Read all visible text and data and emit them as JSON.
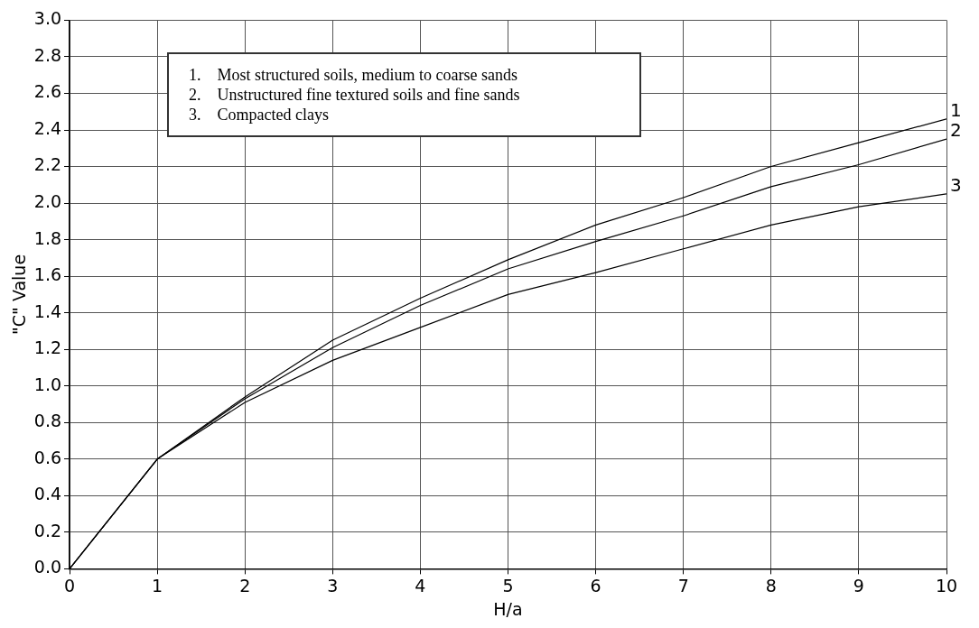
{
  "chart_data": {
    "type": "line",
    "xlabel": "H/a",
    "ylabel": "\"C\" Value",
    "x": [
      0,
      1,
      2,
      3,
      4,
      5,
      6,
      7,
      8,
      9,
      10
    ],
    "series": [
      {
        "name": "1",
        "color": "#000000",
        "values": [
          0,
          0.6,
          0.94,
          1.25,
          1.48,
          1.69,
          1.88,
          2.03,
          2.2,
          2.33,
          2.46
        ]
      },
      {
        "name": "2",
        "color": "#000000",
        "values": [
          0,
          0.6,
          0.93,
          1.21,
          1.44,
          1.64,
          1.79,
          1.93,
          2.09,
          2.21,
          2.35
        ]
      },
      {
        "name": "3",
        "color": "#000000",
        "values": [
          0,
          0.6,
          0.91,
          1.14,
          1.32,
          1.5,
          1.62,
          1.75,
          1.88,
          1.98,
          2.05
        ]
      }
    ],
    "xlim": [
      0,
      10
    ],
    "xticks": [
      0,
      1,
      2,
      3,
      4,
      5,
      6,
      7,
      8,
      9,
      10
    ],
    "ylim": [
      0,
      3
    ],
    "yticks": [
      {
        "value": 0,
        "label": "0.0"
      },
      {
        "value": 0.2,
        "label": "0.2"
      },
      {
        "value": 0.4,
        "label": "0.4"
      },
      {
        "value": 0.6,
        "label": "0.6"
      },
      {
        "value": 0.8,
        "label": "0.8"
      },
      {
        "value": 1,
        "label": "1.0"
      },
      {
        "value": 1.2,
        "label": "1.2"
      },
      {
        "value": 1.4,
        "label": "1.4"
      },
      {
        "value": 1.6,
        "label": "1.6"
      },
      {
        "value": 1.8,
        "label": "1.8"
      },
      {
        "value": 2,
        "label": "2.0"
      },
      {
        "value": 2.2,
        "label": "2.2"
      },
      {
        "value": 2.4,
        "label": "2.4"
      },
      {
        "value": 2.6,
        "label": "2.6"
      },
      {
        "value": 2.8,
        "label": "2.8"
      },
      {
        "value": 3,
        "label": "3.0"
      }
    ],
    "grid": true,
    "legend": false,
    "marker": "none",
    "line_style": "solid",
    "annotations": [
      "1.    Most structured soils, medium to coarse sands",
      "2.    Unstructured fine textured soils and fine sands",
      "3.    Compacted clays"
    ]
  }
}
